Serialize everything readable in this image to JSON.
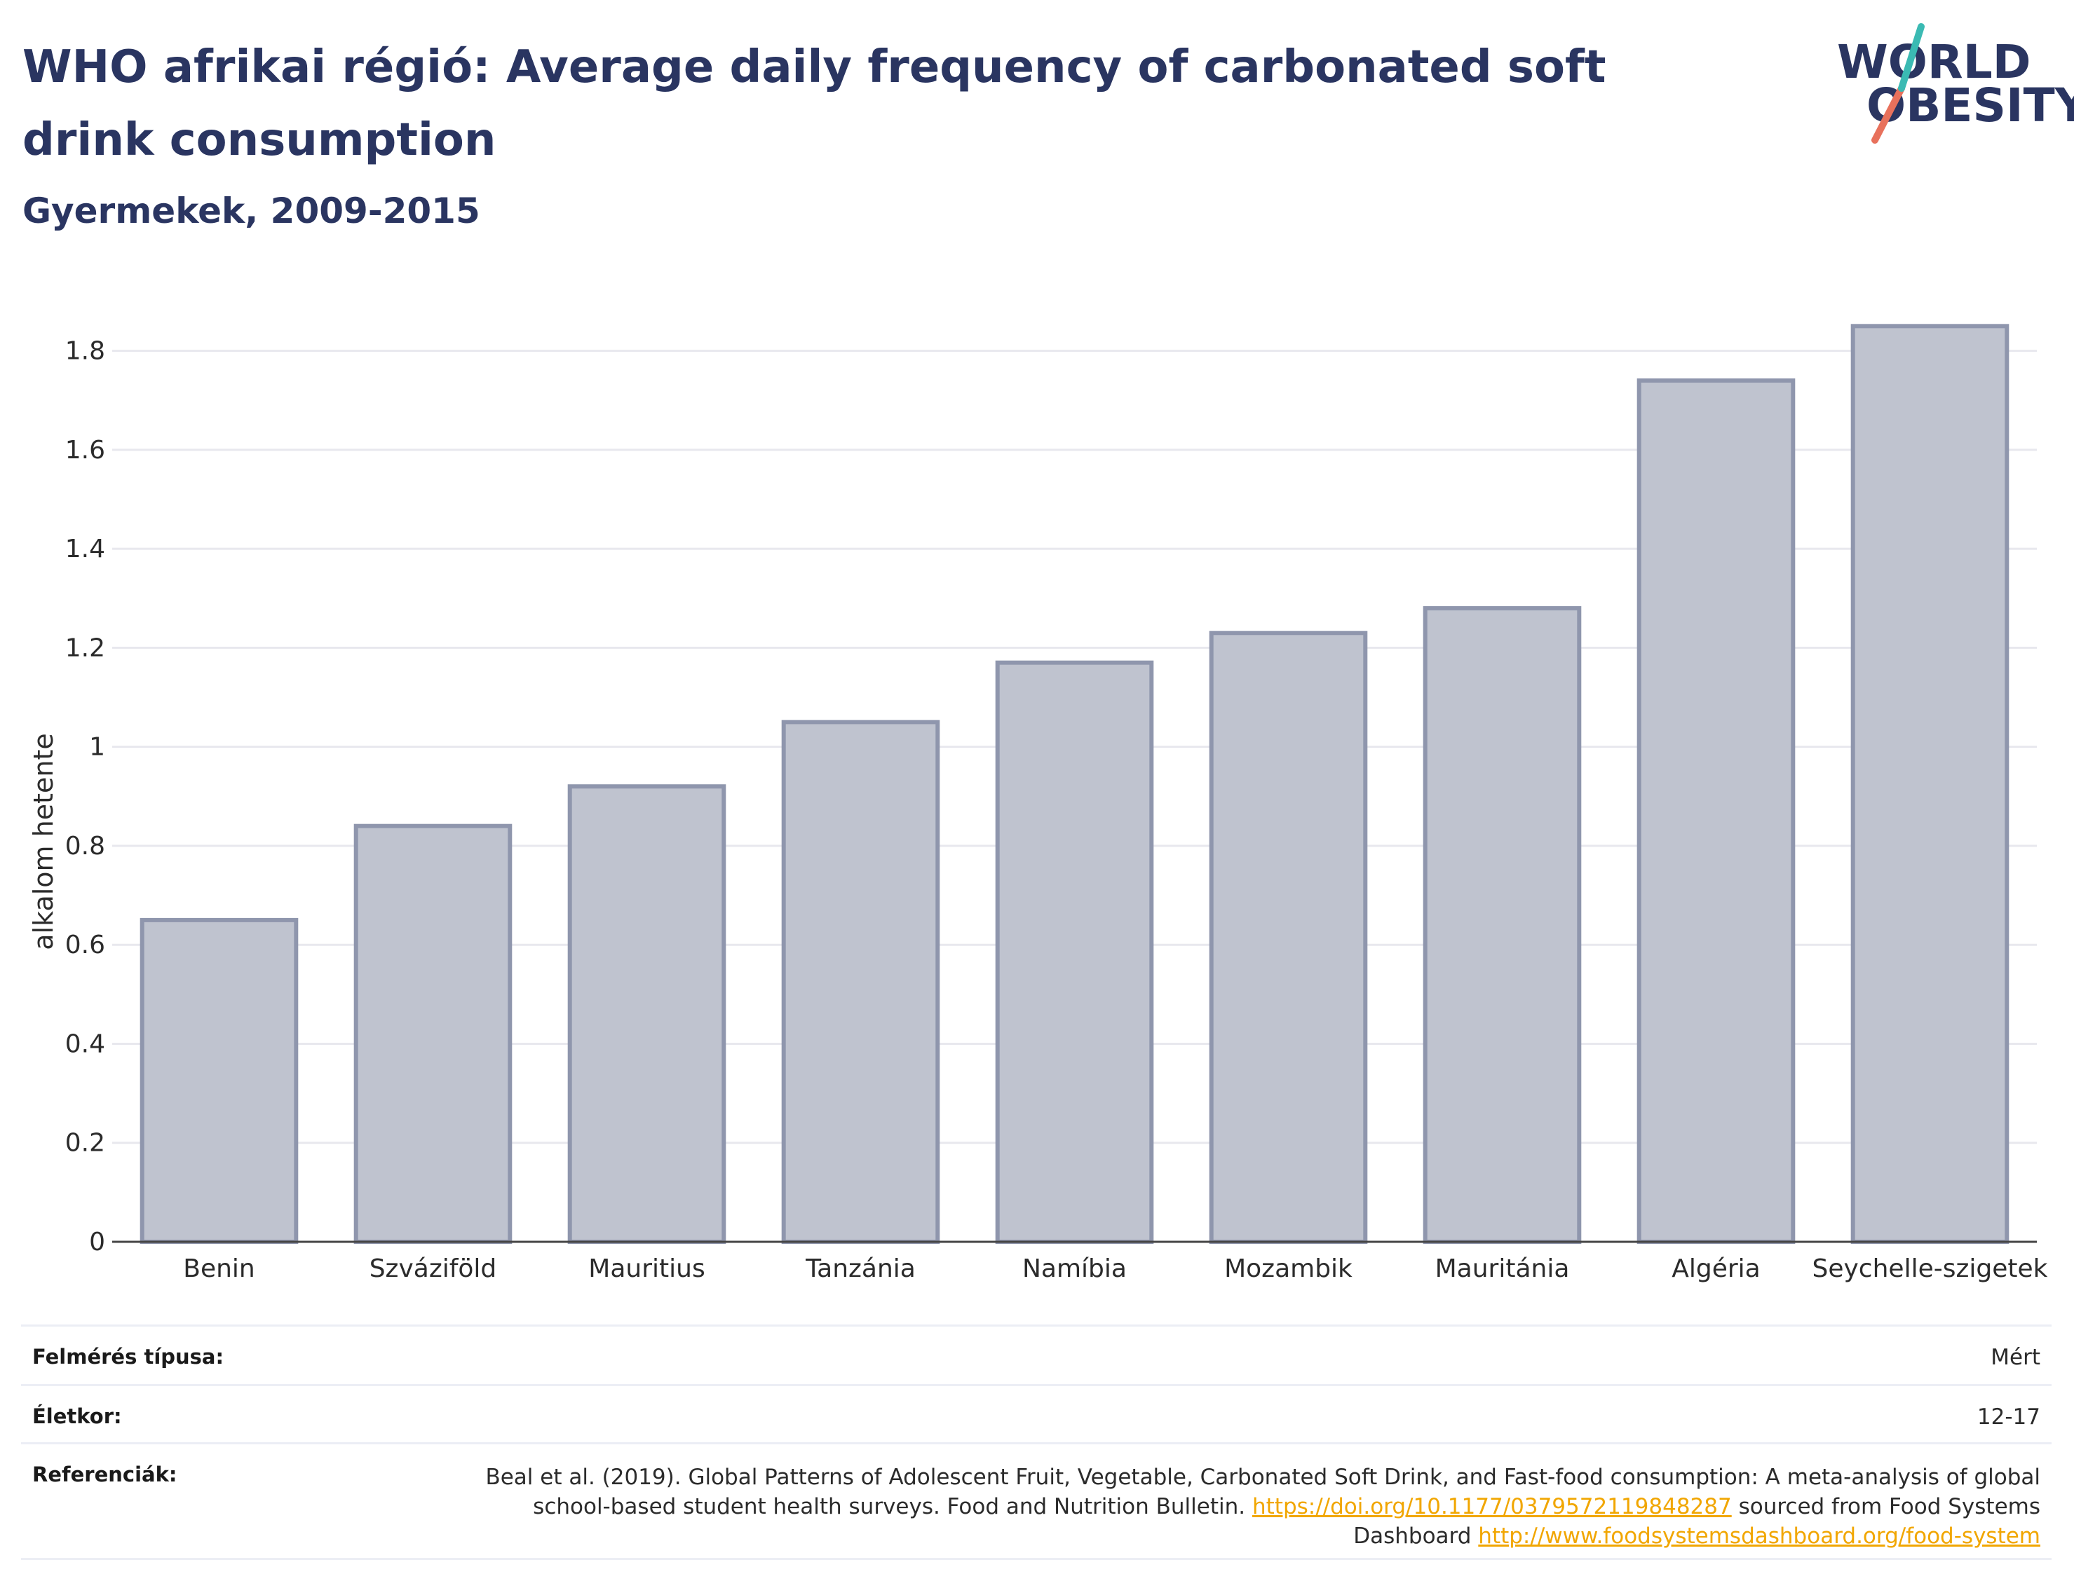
{
  "header": {
    "title": "WHO afrikai régió: Average daily frequency of carbonated soft drink consumption",
    "subtitle": "Gyermekek, 2009-2015",
    "logo_line1": "WORLD",
    "logo_line2": "OBESITY"
  },
  "chart_data": {
    "type": "bar",
    "title": "WHO afrikai régió: Average daily frequency of carbonated soft drink consumption",
    "subtitle": "Gyermekek, 2009-2015",
    "categories": [
      "Benin",
      "Szváziföld",
      "Mauritius",
      "Tanzánia",
      "Namíbia",
      "Mozambik",
      "Mauritánia",
      "Algéria",
      "Seychelle-szigetek"
    ],
    "values": [
      0.65,
      0.84,
      0.92,
      1.05,
      1.17,
      1.23,
      1.28,
      1.74,
      1.85
    ],
    "xlabel": "",
    "ylabel": "alkalom hetente",
    "ylim": [
      0,
      1.9
    ],
    "yticks": [
      0,
      0.2,
      0.4,
      0.6,
      0.8,
      1,
      1.2,
      1.4,
      1.6,
      1.8
    ],
    "ytick_labels": [
      "0",
      "0.2",
      "0.4",
      "0.6",
      "0.8",
      "1",
      "1.2",
      "1.4",
      "1.6",
      "1.8"
    ],
    "grid": true,
    "legend": "none",
    "colors": {
      "bar_fill": "#bfc3cf",
      "bar_stroke": "#8f96ad",
      "grid": "#e8e8ee",
      "axis": "#444444"
    }
  },
  "meta": {
    "survey_type_label": "Felmérés típusa:",
    "survey_type_value": "Mért",
    "age_label": "Életkor:",
    "age_value": "12-17",
    "references_label": "Referenciák:",
    "references_text_1": "Beal et al. (2019). Global Patterns of Adolescent Fruit, Vegetable, Carbonated Soft Drink, and Fast-food consumption: A meta-analysis of global school-based student health surveys. Food and Nutrition Bulletin.",
    "references_link_1": "https://doi.org/10.1177/0379572119848287",
    "references_text_2": "sourced from Food Systems Dashboard",
    "references_link_2": "http://www.foodsystemsdashboard.org/food-system"
  }
}
